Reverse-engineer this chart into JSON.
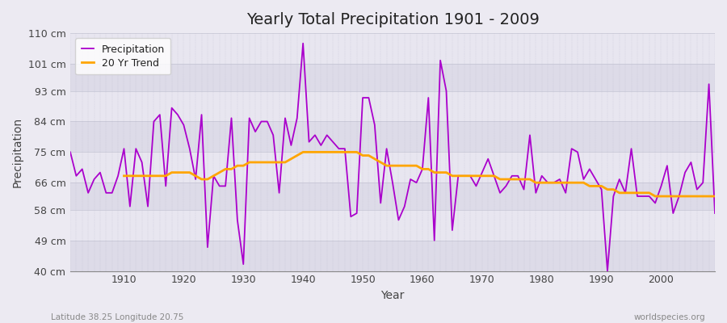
{
  "title": "Yearly Total Precipitation 1901 - 2009",
  "xlabel": "Year",
  "ylabel": "Precipitation",
  "subtitle_left": "Latitude 38.25 Longitude 20.75",
  "subtitle_right": "worldspecies.org",
  "ylim": [
    40,
    110
  ],
  "ytick_labels": [
    "40 cm",
    "49 cm",
    "58 cm",
    "66 cm",
    "75 cm",
    "84 cm",
    "93 cm",
    "101 cm",
    "110 cm"
  ],
  "ytick_values": [
    40,
    49,
    58,
    66,
    75,
    84,
    93,
    101,
    110
  ],
  "years": [
    1901,
    1902,
    1903,
    1904,
    1905,
    1906,
    1907,
    1908,
    1909,
    1910,
    1911,
    1912,
    1913,
    1914,
    1915,
    1916,
    1917,
    1918,
    1919,
    1920,
    1921,
    1922,
    1923,
    1924,
    1925,
    1926,
    1927,
    1928,
    1929,
    1930,
    1931,
    1932,
    1933,
    1934,
    1935,
    1936,
    1937,
    1938,
    1939,
    1940,
    1941,
    1942,
    1943,
    1944,
    1945,
    1946,
    1947,
    1948,
    1949,
    1950,
    1951,
    1952,
    1953,
    1954,
    1955,
    1956,
    1957,
    1958,
    1959,
    1960,
    1961,
    1962,
    1963,
    1964,
    1965,
    1966,
    1967,
    1968,
    1969,
    1970,
    1971,
    1972,
    1973,
    1974,
    1975,
    1976,
    1977,
    1978,
    1979,
    1980,
    1981,
    1982,
    1983,
    1984,
    1985,
    1986,
    1987,
    1988,
    1989,
    1990,
    1991,
    1992,
    1993,
    1994,
    1995,
    1996,
    1997,
    1998,
    1999,
    2000,
    2001,
    2002,
    2003,
    2004,
    2005,
    2006,
    2007,
    2008,
    2009
  ],
  "precipitation": [
    75,
    68,
    70,
    63,
    67,
    69,
    63,
    63,
    68,
    76,
    59,
    76,
    72,
    59,
    84,
    86,
    65,
    88,
    86,
    83,
    76,
    67,
    86,
    47,
    68,
    65,
    65,
    85,
    55,
    42,
    85,
    81,
    84,
    84,
    80,
    63,
    85,
    77,
    85,
    107,
    78,
    80,
    77,
    80,
    78,
    76,
    76,
    56,
    57,
    91,
    91,
    83,
    60,
    76,
    66,
    55,
    59,
    67,
    66,
    70,
    91,
    49,
    102,
    93,
    52,
    68,
    68,
    68,
    65,
    69,
    73,
    68,
    63,
    65,
    68,
    68,
    64,
    80,
    63,
    68,
    66,
    66,
    67,
    63,
    76,
    75,
    67,
    70,
    67,
    64,
    40,
    62,
    67,
    63,
    76,
    62,
    62,
    62,
    60,
    65,
    71,
    57,
    62,
    69,
    72,
    64,
    66,
    95,
    57
  ],
  "trend_years": [
    1910,
    1911,
    1912,
    1913,
    1914,
    1915,
    1916,
    1917,
    1918,
    1919,
    1920,
    1921,
    1922,
    1923,
    1924,
    1925,
    1926,
    1927,
    1928,
    1929,
    1930,
    1931,
    1932,
    1933,
    1934,
    1935,
    1936,
    1937,
    1938,
    1939,
    1940,
    1941,
    1942,
    1943,
    1944,
    1945,
    1946,
    1947,
    1948,
    1949,
    1950,
    1951,
    1952,
    1953,
    1954,
    1955,
    1956,
    1957,
    1958,
    1959,
    1960,
    1961,
    1962,
    1963,
    1964,
    1965,
    1966,
    1967,
    1968,
    1969,
    1970,
    1971,
    1972,
    1973,
    1974,
    1975,
    1976,
    1977,
    1978,
    1979,
    1980,
    1981,
    1982,
    1983,
    1984,
    1985,
    1986,
    1987,
    1988,
    1989,
    1990,
    1991,
    1992,
    1993,
    1994,
    1995,
    1996,
    1997,
    1998,
    1999,
    2000,
    2001,
    2002,
    2003,
    2004,
    2005,
    2006,
    2007,
    2008,
    2009
  ],
  "trend": [
    68,
    68,
    68,
    68,
    68,
    68,
    68,
    68,
    69,
    69,
    69,
    69,
    68,
    67,
    67,
    68,
    69,
    70,
    70,
    71,
    71,
    72,
    72,
    72,
    72,
    72,
    72,
    72,
    73,
    74,
    75,
    75,
    75,
    75,
    75,
    75,
    75,
    75,
    75,
    75,
    74,
    74,
    73,
    72,
    71,
    71,
    71,
    71,
    71,
    71,
    70,
    70,
    69,
    69,
    69,
    68,
    68,
    68,
    68,
    68,
    68,
    68,
    68,
    67,
    67,
    67,
    67,
    67,
    67,
    66,
    66,
    66,
    66,
    66,
    66,
    66,
    66,
    66,
    65,
    65,
    65,
    64,
    64,
    63,
    63,
    63,
    63,
    63,
    63,
    62,
    62,
    62,
    62,
    62,
    62,
    62,
    62,
    62,
    62,
    62
  ],
  "precip_color": "#AA00CC",
  "trend_color": "#FFA500",
  "bg_color": "#ECEAF2",
  "band_light": "#E8E6F0",
  "band_dark": "#DDDBE8",
  "grid_color": "#BBBBCC",
  "legend_bg": "#FFFFFF"
}
